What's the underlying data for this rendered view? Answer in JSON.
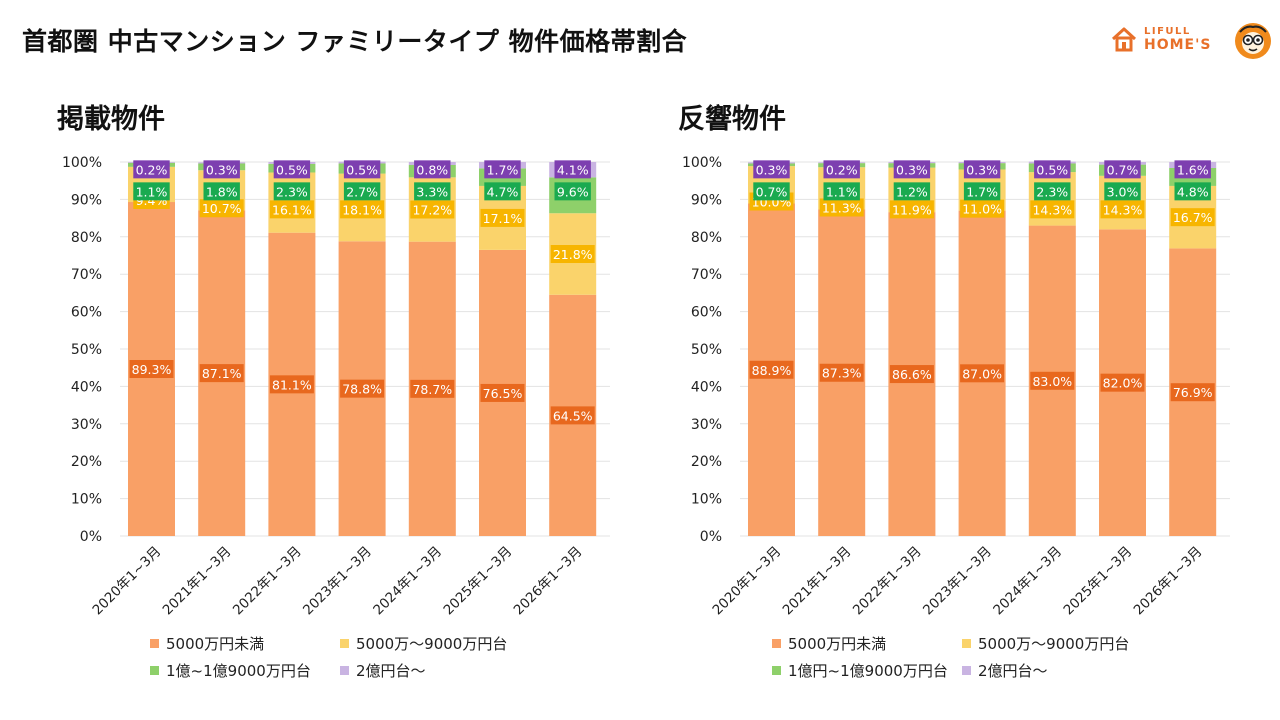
{
  "header": {
    "title": "首都圏 中古マンション ファミリータイプ 物件価格帯割合",
    "logo_line1": "LIFULL",
    "logo_line2": "HOME'S"
  },
  "colors": {
    "orange": "#f9a066",
    "yellow": "#fad36b",
    "green": "#8ed06a",
    "purple": "#c9b4e2",
    "label_orange": "#e8681e",
    "label_yellow": "#f7b500",
    "label_green": "#1aaa50",
    "label_purple": "#7d3fb0",
    "grid": "#e3e3e3"
  },
  "chart_data": [
    {
      "type": "bar",
      "stacked": true,
      "title": "掲載物件",
      "categories": [
        "2020年1~3月",
        "2021年1~3月",
        "2022年1~3月",
        "2023年1~3月",
        "2024年1~3月",
        "2025年1~3月",
        "2026年1~3月"
      ],
      "series": [
        {
          "name": "5000万円未満",
          "values": [
            89.3,
            87.1,
            81.1,
            78.8,
            78.7,
            76.5,
            64.5
          ]
        },
        {
          "name": "5000万～9000万円台",
          "values": [
            9.4,
            10.7,
            16.1,
            18.1,
            17.2,
            17.1,
            21.8
          ]
        },
        {
          "name": "1億~1億9000万円台",
          "values": [
            1.1,
            1.8,
            2.3,
            2.7,
            3.3,
            4.7,
            9.6
          ]
        },
        {
          "name": "2億円台～",
          "values": [
            0.2,
            0.3,
            0.5,
            0.5,
            0.8,
            1.7,
            4.1
          ]
        }
      ],
      "yticks": [
        "0%",
        "10%",
        "20%",
        "30%",
        "40%",
        "50%",
        "60%",
        "70%",
        "80%",
        "90%",
        "100%"
      ],
      "ylim": [
        0,
        100
      ],
      "grid": true,
      "legend": "bottom"
    },
    {
      "type": "bar",
      "stacked": true,
      "title": "反響物件",
      "categories": [
        "2020年1~3月",
        "2021年1~3月",
        "2022年1~3月",
        "2023年1~3月",
        "2024年1~3月",
        "2025年1~3月",
        "2026年1~3月"
      ],
      "series": [
        {
          "name": "5000万円未満",
          "values": [
            88.9,
            87.3,
            86.6,
            87.0,
            83.0,
            82.0,
            76.9
          ]
        },
        {
          "name": "5000万～9000万円台",
          "values": [
            10.0,
            11.3,
            11.9,
            11.0,
            14.3,
            14.3,
            16.7
          ]
        },
        {
          "name": "1億円~1億9000万円台",
          "values": [
            0.7,
            1.1,
            1.2,
            1.7,
            2.3,
            3.0,
            4.8
          ]
        },
        {
          "name": "2億円台～",
          "values": [
            0.3,
            0.2,
            0.3,
            0.3,
            0.5,
            0.7,
            1.6
          ]
        }
      ],
      "yticks": [
        "0%",
        "10%",
        "20%",
        "30%",
        "40%",
        "50%",
        "60%",
        "70%",
        "80%",
        "90%",
        "100%"
      ],
      "ylim": [
        0,
        100
      ],
      "grid": true,
      "legend": "bottom"
    }
  ]
}
